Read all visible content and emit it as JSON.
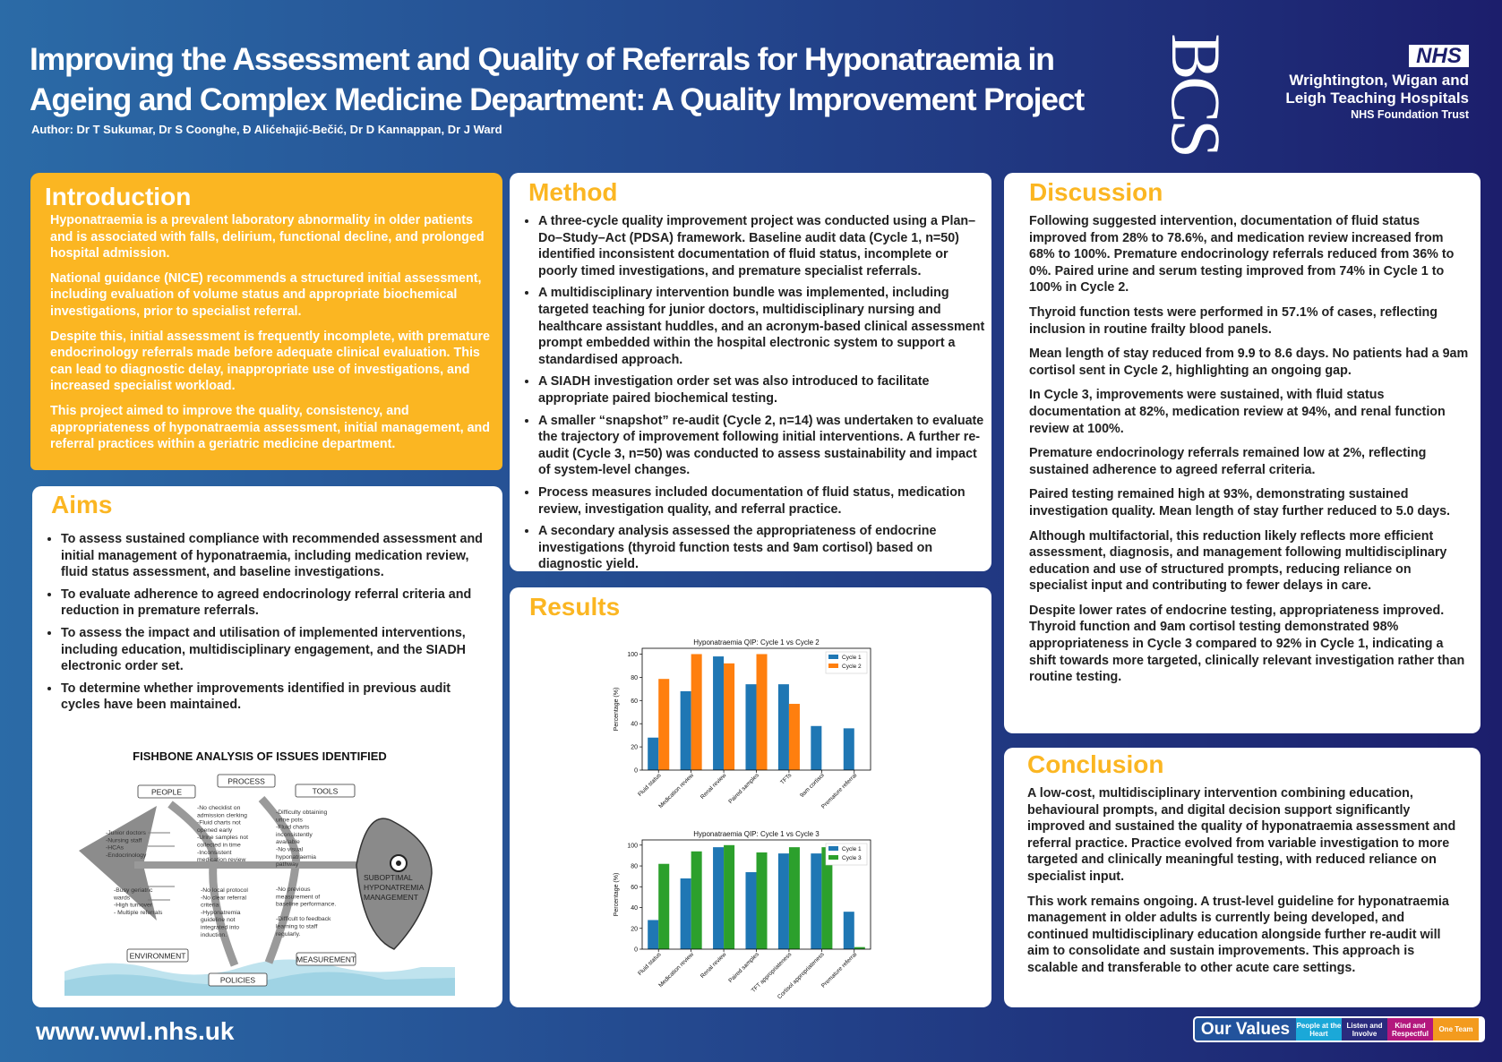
{
  "header": {
    "title": [
      "Improving the Assessment and Quality of Referrals for Hyponatraemia in",
      "Ageing and Complex Medicine Department: A Quality Improvement Project"
    ],
    "authors": "Author: Dr T Sukumar, Dr S Coonghe, Đ Alićehajić-Bečić, Dr D Kannappan, Dr J Ward",
    "logo_bcs": "BCS",
    "logo_nhs": "NHS",
    "trust": [
      "Wrightington, Wigan and",
      "Leigh Teaching Hospitals",
      "NHS Foundation Trust"
    ]
  },
  "introduction": {
    "heading": "Introduction",
    "paragraphs": [
      "Hyponatraemia is a prevalent laboratory abnormality in older patients and is associated with falls, delirium, functional decline, and prolonged hospital admission.",
      "National guidance (NICE) recommends a structured initial assessment, including evaluation of volume status and appropriate biochemical investigations, prior to specialist referral.",
      "Despite this, initial assessment is frequently incomplete, with premature endocrinology referrals made before adequate clinical evaluation. This can lead to diagnostic delay, inappropriate use of investigations, and increased specialist workload.",
      "This project aimed to improve the quality, consistency, and appropriateness of hyponatraemia assessment, initial management, and referral practices within a geriatric medicine department."
    ]
  },
  "aims": {
    "heading": "Aims",
    "items": [
      "To assess sustained compliance with recommended assessment and initial management of hyponatraemia, including medication review, fluid status assessment, and baseline investigations.",
      "To evaluate adherence to agreed endocrinology referral criteria and reduction in premature referrals.",
      "To assess the impact and utilisation of implemented interventions, including education, multidisciplinary engagement, and the SIADH electronic order set.",
      "To determine whether improvements identified in previous audit cycles have been maintained."
    ]
  },
  "fishbone": {
    "title": "FISHBONE ANALYSIS OF ISSUES IDENTIFIED",
    "effect": [
      "SUBOPTIMAL",
      "HYPONATREMIA",
      "MANAGEMENT"
    ],
    "groups": [
      {
        "label": "PEOPLE",
        "notes": [
          "-Junior doctors",
          "-Nursing staff",
          "-HCAs",
          "-Endocrinology"
        ]
      },
      {
        "label": "PROCESS",
        "notes": [
          "-No checklist on",
          "admission clerking",
          "-Fluid charts not",
          "opened early",
          "-Urine samples not",
          "collected in time",
          "-Inconsistent",
          "medication review"
        ]
      },
      {
        "label": "TOOLS",
        "notes": [
          "-Difficulty obtaining",
          "urine pots",
          "-Fluid charts",
          "inconsistently",
          "available",
          "-No visual",
          "hyponatraemia",
          "pathway"
        ]
      },
      {
        "label": "ENVIRONMENT",
        "notes": [
          "-Busy geriatric",
          "wards",
          "-High turnover",
          "- Multiple referrals"
        ]
      },
      {
        "label": "POLICIES",
        "notes": [
          "-No local protocol",
          "-No clear referral",
          "criteria",
          "-Hyponatremia",
          "guideline not",
          "integrated into",
          "induction."
        ]
      },
      {
        "label": "MEASUREMENT",
        "notes": [
          "-No previous",
          "measurement of",
          "baseline performance.",
          "",
          "-Difficult to feedback",
          "learning to staff",
          "regularly."
        ]
      }
    ]
  },
  "method": {
    "heading": "Method",
    "items": [
      "A three-cycle quality improvement project was conducted using a Plan–Do–Study–Act (PDSA) framework. Baseline audit data (Cycle 1, n=50) identified inconsistent documentation of fluid status, incomplete or poorly timed investigations, and premature specialist referrals.",
      "A multidisciplinary intervention bundle was implemented, including targeted teaching for junior doctors, multidisciplinary nursing and healthcare assistant huddles, and an acronym-based clinical assessment prompt embedded within the hospital electronic system to support a standardised approach.",
      "A SIADH investigation order set was also introduced to facilitate appropriate paired biochemical testing.",
      "A smaller “snapshot” re-audit (Cycle 2, n=14) was undertaken to evaluate the trajectory of improvement following initial interventions. A further re-audit (Cycle 3, n=50) was conducted to assess sustainability and impact of system-level changes.",
      "Process measures included documentation of fluid status, medication review, investigation quality, and referral practice.",
      "A secondary analysis assessed the appropriateness of endocrine investigations (thyroid function tests and 9am cortisol) based on diagnostic yield."
    ]
  },
  "results": {
    "heading": "Results",
    "charts": [
      {
        "type": "bar",
        "title": "Hyponatraemia QIP: Cycle 1 vs Cycle 2",
        "y_label": "Percentage (%)",
        "categories": [
          "Fluid status",
          "Medication review",
          "Renal review",
          "Paired samples",
          "TFTs",
          "9am cortisol",
          "Premature referral"
        ],
        "series": [
          {
            "name": "Cycle 1",
            "color": "#1f77b4",
            "values": [
              28,
              68,
              98,
              74,
              74,
              38,
              36
            ]
          },
          {
            "name": "Cycle 2",
            "color": "#ff7f0e",
            "values": [
              78.6,
              100,
              92,
              100,
              57.1,
              0,
              0
            ]
          }
        ],
        "ylim": [
          0,
          105
        ],
        "yticks": [
          0,
          20,
          40,
          60,
          80,
          100
        ],
        "legend": "upper right"
      },
      {
        "type": "bar",
        "title": "Hyponatraemia QIP: Cycle 1 vs Cycle 3",
        "y_label": "Percentage (%)",
        "categories": [
          "Fluid status",
          "Medication review",
          "Renal review",
          "Paired samples",
          "TFT appropriateness",
          "Cortisol appropriateness",
          "Premature referral"
        ],
        "series": [
          {
            "name": "Cycle 1",
            "color": "#1f77b4",
            "values": [
              28,
              68,
              98,
              74,
              92,
              92,
              36
            ]
          },
          {
            "name": "Cycle 3",
            "color": "#2ca02c",
            "values": [
              82,
              94,
              100,
              93,
              98,
              98,
              2
            ]
          }
        ],
        "ylim": [
          0,
          105
        ],
        "yticks": [
          0,
          20,
          40,
          60,
          80,
          100
        ],
        "legend": "upper right"
      }
    ]
  },
  "discussion": {
    "heading": "Discussion",
    "paragraphs": [
      "Following suggested intervention, documentation of fluid status improved from 28% to 78.6%, and medication review increased from 68% to 100%. Premature endocrinology referrals reduced from 36% to 0%. Paired urine and serum testing improved from 74% in Cycle 1 to 100% in Cycle 2.",
      "Thyroid function tests were performed in 57.1% of cases, reflecting inclusion in routine frailty blood panels.",
      "Mean length of stay reduced from 9.9 to 8.6 days. No patients had a 9am cortisol sent in Cycle 2, highlighting an ongoing gap.",
      "In Cycle 3, improvements were sustained, with fluid status documentation at 82%, medication review at 94%, and renal function review at 100%.",
      "Premature endocrinology referrals remained low at 2%, reflecting sustained adherence to agreed referral criteria.",
      "Paired testing remained high at 93%, demonstrating sustained investigation quality. Mean length of stay further reduced to 5.0 days.",
      "Although multifactorial, this reduction likely reflects more efficient assessment, diagnosis, and management following multidisciplinary education and use of structured prompts, reducing reliance on specialist input and contributing to fewer delays in care.",
      "Despite lower rates of endocrine testing, appropriateness improved. Thyroid function and 9am cortisol testing demonstrated 98% appropriateness in Cycle 3 compared to 92% in Cycle 1, indicating a shift towards more targeted, clinically relevant investigation rather than routine testing."
    ]
  },
  "conclusion": {
    "heading": "Conclusion",
    "paragraphs": [
      "A low-cost, multidisciplinary intervention combining education, behavioural prompts, and digital decision support significantly improved and sustained the quality of hyponatraemia assessment and referral practice. Practice evolved from variable investigation to more targeted and clinically meaningful testing, with reduced reliance on specialist input.",
      "This work remains ongoing. A trust-level guideline for hyponatraemia management in older adults is currently being developed, and continued multidisciplinary education alongside further re-audit will aim to consolidate and sustain improvements. This approach is scalable and transferable to other acute care settings."
    ]
  },
  "footer": {
    "url": "www.wwl.nhs.uk",
    "values_title": "Our Values",
    "values": [
      "People at the Heart",
      "Listen and Involve",
      "Kind and Respectful",
      "One Team"
    ]
  }
}
